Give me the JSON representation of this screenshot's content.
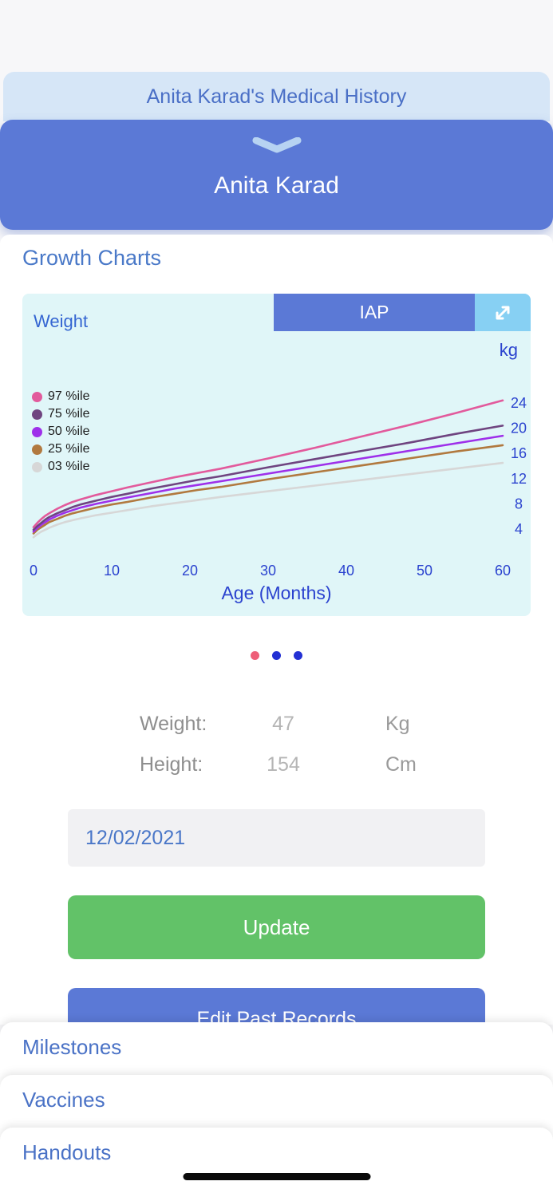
{
  "header": {
    "title": "Anita Karad's Medical History"
  },
  "patient": {
    "name": "Anita Karad"
  },
  "section": {
    "title": "Growth Charts"
  },
  "chart_card": {
    "measure_label": "Weight",
    "iap_button_label": "IAP",
    "unit_label": "kg"
  },
  "chart_data": {
    "type": "line",
    "title": "Weight",
    "xlabel": "Age (Months)",
    "ylabel": "kg",
    "xlim": [
      0,
      60
    ],
    "ylim": [
      2,
      26
    ],
    "x_ticks": [
      0,
      10,
      20,
      30,
      40,
      50,
      60
    ],
    "y_ticks": [
      24,
      20,
      16,
      12,
      8,
      4
    ],
    "grid": false,
    "legend_position": "top-left",
    "axis_color": "#2b43cf",
    "x": [
      0,
      0.5,
      1,
      1.5,
      2,
      3,
      4,
      5,
      6,
      8,
      10,
      12,
      15,
      18,
      21,
      24,
      30,
      36,
      42,
      48,
      54,
      60
    ],
    "series": [
      {
        "name": "97 %ile",
        "color": "#e25a9c",
        "values": [
          4.3,
          5.0,
          5.6,
          6.1,
          6.5,
          7.2,
          7.8,
          8.3,
          8.7,
          9.4,
          10.0,
          10.6,
          11.4,
          12.2,
          12.9,
          13.6,
          15.2,
          16.9,
          18.7,
          20.5,
          22.4,
          24.4
        ]
      },
      {
        "name": "75 %ile",
        "color": "#6f4480",
        "values": [
          3.9,
          4.5,
          5.0,
          5.5,
          5.9,
          6.5,
          7.0,
          7.5,
          7.9,
          8.5,
          9.1,
          9.6,
          10.4,
          11.1,
          11.8,
          12.4,
          13.8,
          15.1,
          16.4,
          17.7,
          19.1,
          20.4
        ]
      },
      {
        "name": "50 %ile",
        "color": "#9e30ea",
        "values": [
          3.6,
          4.2,
          4.7,
          5.1,
          5.5,
          6.1,
          6.6,
          7.0,
          7.4,
          8.0,
          8.5,
          9.0,
          9.7,
          10.4,
          11.0,
          11.6,
          12.8,
          14.0,
          15.2,
          16.4,
          17.6,
          18.8
        ]
      },
      {
        "name": "25 %ile",
        "color": "#b1793f",
        "values": [
          3.3,
          3.9,
          4.3,
          4.7,
          5.1,
          5.6,
          6.1,
          6.5,
          6.8,
          7.4,
          7.9,
          8.3,
          9.0,
          9.6,
          10.2,
          10.7,
          11.9,
          13.0,
          14.1,
          15.2,
          16.3,
          17.3
        ]
      },
      {
        "name": "03 %ile",
        "color": "#d7d7d7",
        "values": [
          2.7,
          3.2,
          3.6,
          3.9,
          4.2,
          4.7,
          5.1,
          5.4,
          5.7,
          6.2,
          6.6,
          7.0,
          7.6,
          8.1,
          8.6,
          9.1,
          10.0,
          10.9,
          11.8,
          12.7,
          13.6,
          14.5
        ]
      }
    ]
  },
  "pagination": {
    "dots": [
      {
        "color": "#ee5e78",
        "active": true
      },
      {
        "color": "#2330d4",
        "active": false
      },
      {
        "color": "#2330d4",
        "active": false
      }
    ]
  },
  "form": {
    "weight_label": "Weight:",
    "weight_value": "47",
    "weight_unit": "Kg",
    "height_label": "Height:",
    "height_value": "154",
    "height_unit": "Cm",
    "date_value": "12/02/2021",
    "update_button_label": "Update",
    "partially_hidden_button_label": "Edit Past Records"
  },
  "menu": {
    "items": [
      {
        "label": "Milestones"
      },
      {
        "label": "Vaccines"
      },
      {
        "label": "Handouts"
      }
    ]
  }
}
